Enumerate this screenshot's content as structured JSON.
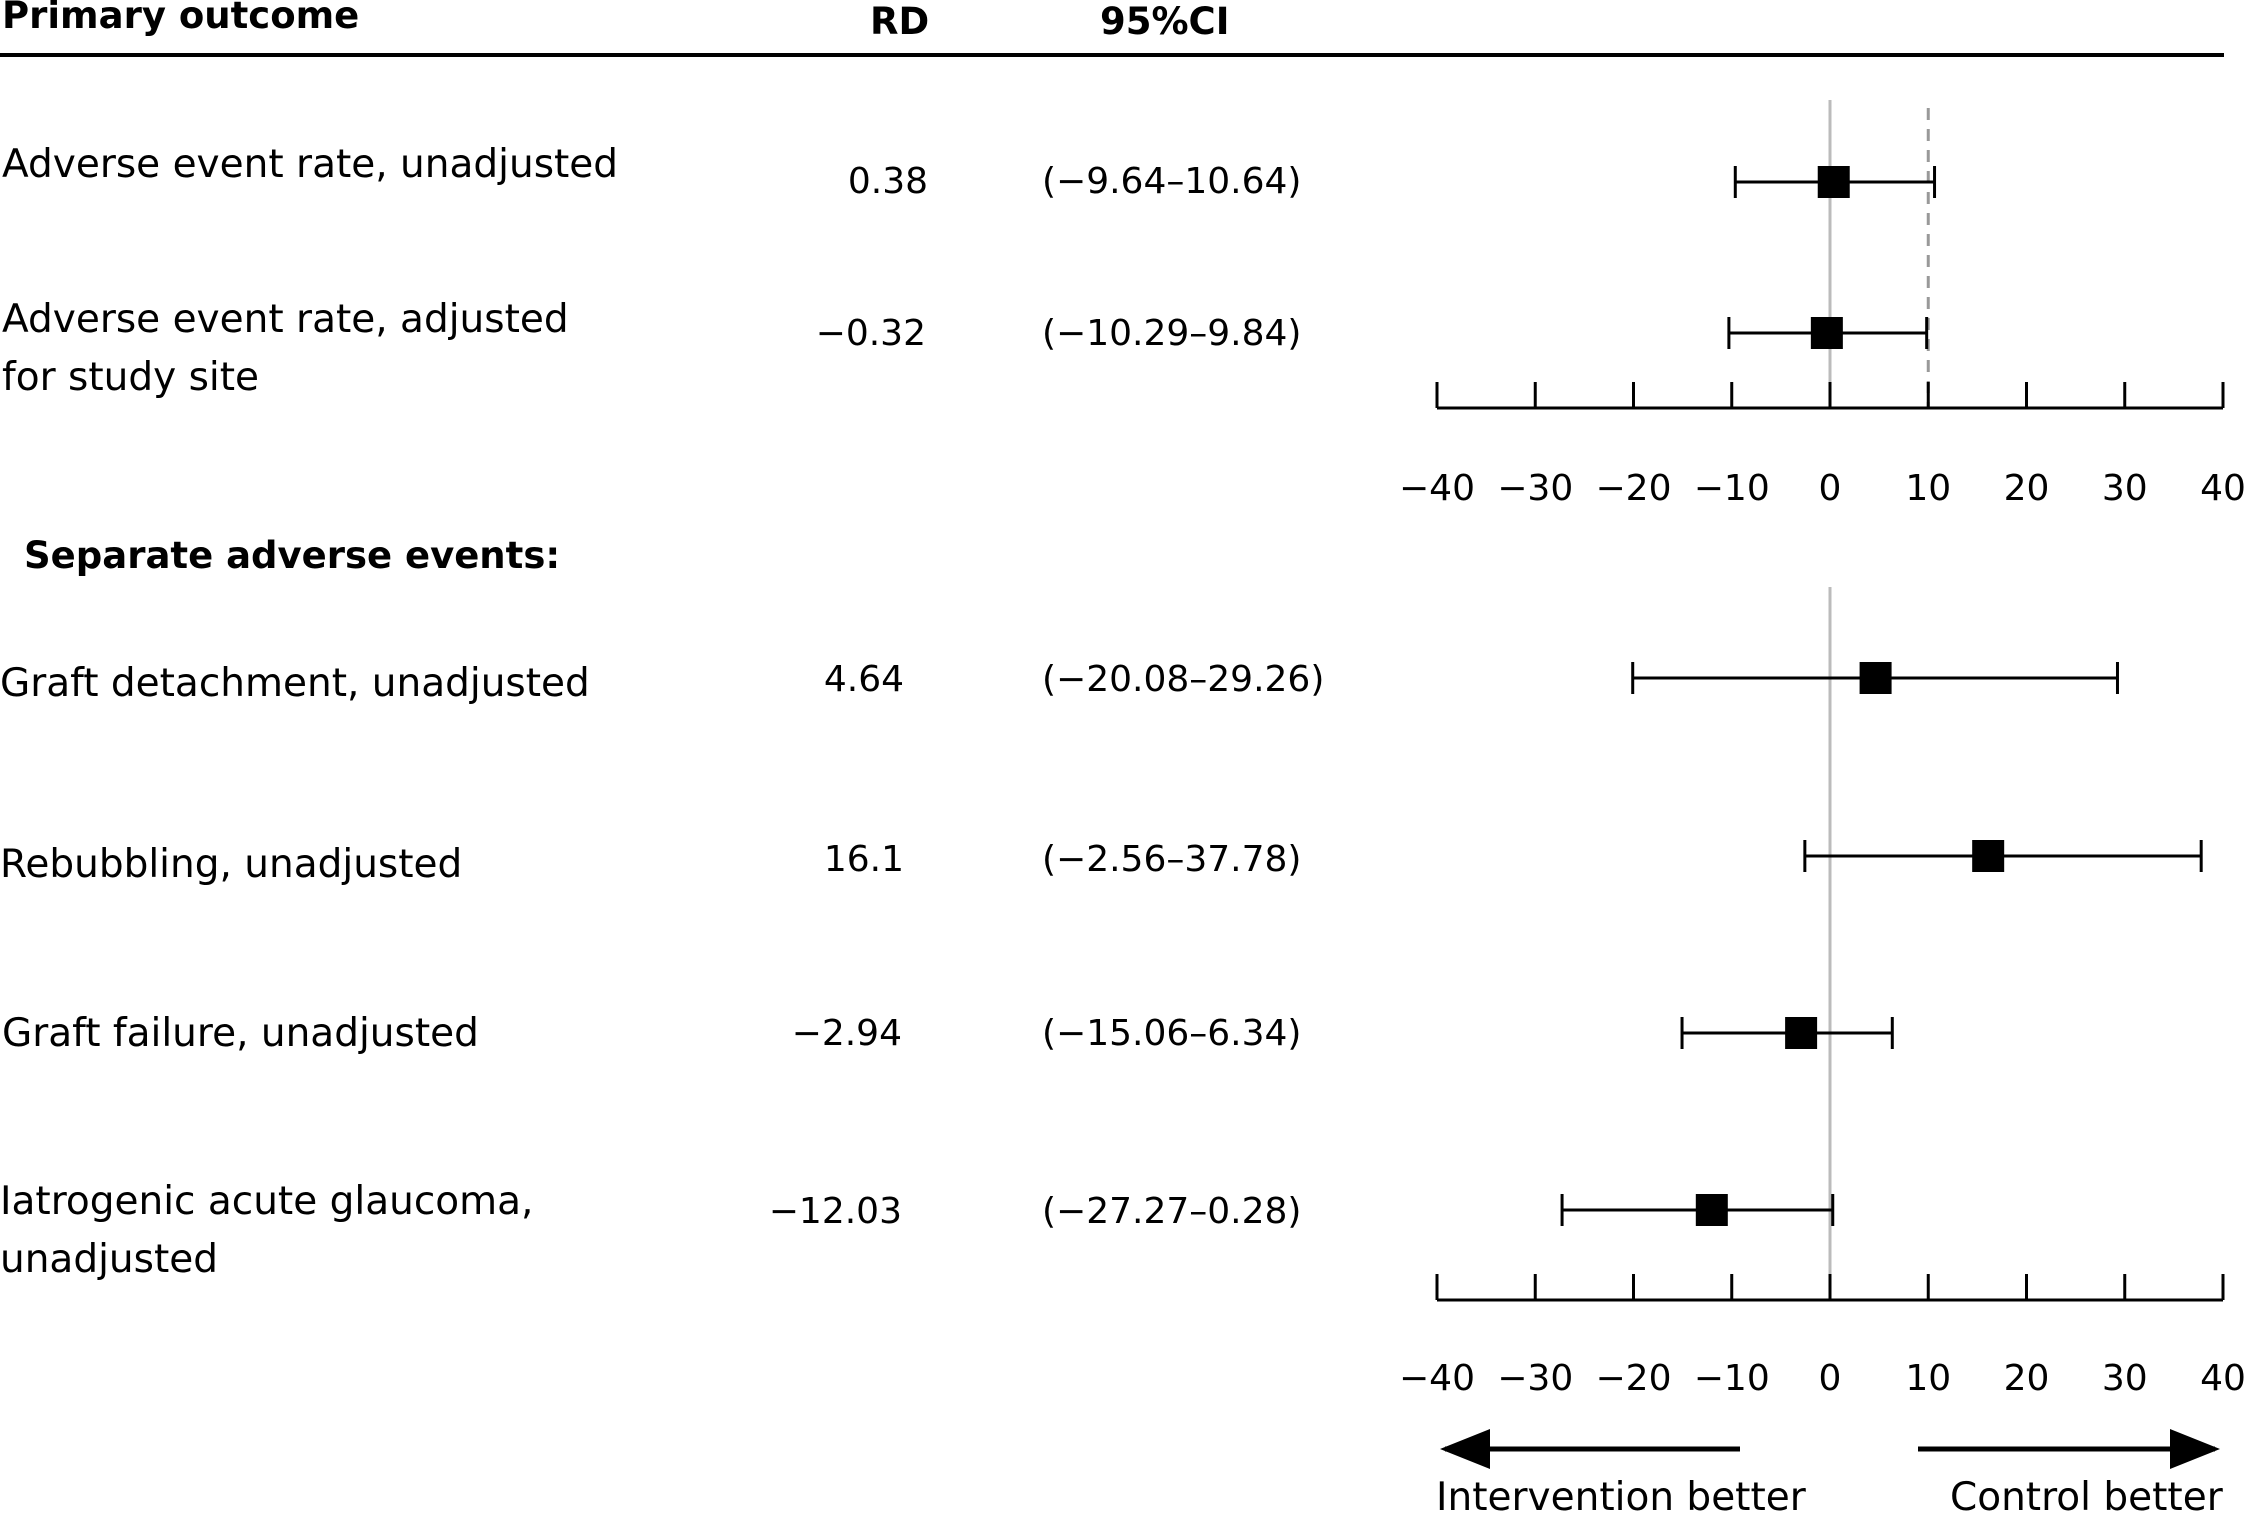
{
  "header": {
    "outcome": "Primary outcome",
    "rd": "RD",
    "ci": "95%CI"
  },
  "sections": {
    "separate_title": "Separate adverse events:"
  },
  "direction_labels": {
    "left": "Intervention better",
    "right": "Control better"
  },
  "chart_data": {
    "type": "forest",
    "x_axis": {
      "min": -40,
      "max": 40,
      "ticks": [
        -40,
        -30,
        -20,
        -10,
        0,
        10,
        20,
        30,
        40
      ],
      "tick_labels": [
        "−40",
        "−30",
        "−20",
        "−10",
        "0",
        "10",
        "20",
        "30",
        "40"
      ]
    },
    "reference_line": 0,
    "dashed_reference_line": 10,
    "panels": [
      {
        "name": "Primary outcome",
        "rows": [
          {
            "label": "Adverse event rate, unadjusted",
            "rd": 0.38,
            "rd_text": "0.38",
            "lower": -9.64,
            "upper": 10.64,
            "ci_text": "(−9.64–10.64)"
          },
          {
            "label": "Adverse event rate, adjusted for study site",
            "rd": -0.32,
            "rd_text": "−0.32",
            "lower": -10.29,
            "upper": 9.84,
            "ci_text": "(−10.29–9.84)"
          }
        ]
      },
      {
        "name": "Separate adverse events:",
        "rows": [
          {
            "label": "Graft detachment, unadjusted",
            "rd": 4.64,
            "rd_text": "4.64",
            "lower": -20.08,
            "upper": 29.26,
            "ci_text": "(−20.08–29.26)"
          },
          {
            "label": "Rebubbling, unadjusted",
            "rd": 16.1,
            "rd_text": "16.1",
            "lower": -2.56,
            "upper": 37.78,
            "ci_text": "(−2.56–37.78)"
          },
          {
            "label": "Graft failure, unadjusted",
            "rd": -2.94,
            "rd_text": "−2.94",
            "lower": -15.06,
            "upper": 6.34,
            "ci_text": "(−15.06–6.34)"
          },
          {
            "label": "Iatrogenic acute glaucoma, unadjusted",
            "rd": -12.03,
            "rd_text": "−12.03",
            "lower": -27.27,
            "upper": 0.28,
            "ci_text": "(−27.27–0.28)"
          }
        ]
      }
    ]
  }
}
